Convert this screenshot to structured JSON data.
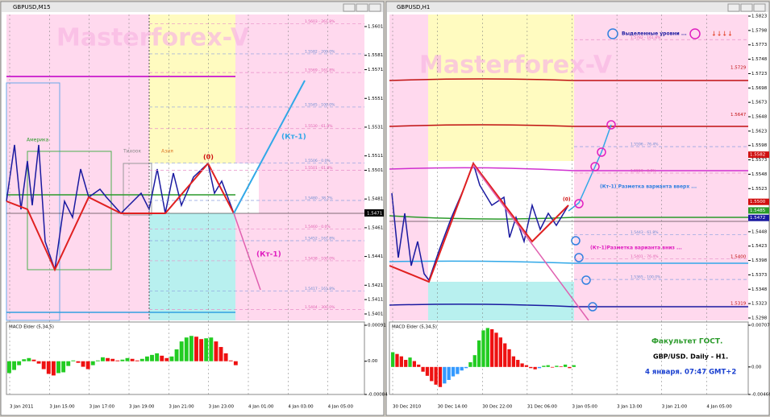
{
  "left": {
    "title": "GBPUSD,M15",
    "watermark": "Masterforex-V",
    "price_axis": [
      "1.5601",
      "1.5581",
      "1.5571",
      "1.5551",
      "1.5531",
      "1.5511",
      "1.5501",
      "1.5481",
      "1.5461",
      "1.5441",
      "1.5421",
      "1.5411",
      "1.5401"
    ],
    "current_price": "1.5471",
    "labels": {
      "america": "Америка",
      "pacific": "Тихоок",
      "asia": "Азия",
      "zero": "(0)",
      "kt_up": "(Кт-1)",
      "kt_down": "(Кт-1)"
    },
    "fib_labels": [
      "1.5603 - 261.8%",
      "1.5582 - 200.0%",
      "1.5569 - 161.8%",
      "1.5545 - 100.0%",
      "1.5530 - 61.8%",
      "1.5506 - 0.0%",
      "1.5501 - 61.8%",
      "1.5480 - 38.2%",
      "1.5460 - 0.0%",
      "1.5452 - 161.8%",
      "1.5438 - 100.0%",
      "1.5417 - 161.8%",
      "1.5404 - 300.0%"
    ],
    "time_axis": [
      "3 Jan 2011",
      "3 Jan 15:00",
      "3 Jan 17:00",
      "3 Jan 19:00",
      "3 Jan 21:00",
      "3 Jan 23:00",
      "4 Jan 01:00",
      "4 Jan 03:00",
      "4 Jan 05:00"
    ],
    "macd": {
      "title": "MACD Elder (5,34,5)",
      "ylim": [
        -0.00084,
        0.00091
      ],
      "yticks": [
        {
          "value": 0.00091,
          "label": "0.00091"
        },
        {
          "value": 0,
          "label": "0.00"
        },
        {
          "value": -0.00084,
          "label": "-0.00084"
        }
      ],
      "values": [
        -0.0003,
        -0.00022,
        -0.0001,
        5e-05,
        8e-05,
        4e-05,
        -6e-05,
        -0.0002,
        -0.00032,
        -0.00036,
        -0.0003,
        -0.00028,
        -0.00012,
        2e-05,
        -4e-05,
        -0.00014,
        -0.0002,
        -0.0001,
        2e-05,
        0.0001,
        8e-05,
        6e-05,
        2e-05,
        4e-05,
        8e-05,
        6e-05,
        2e-05,
        6e-05,
        0.00012,
        0.00016,
        0.0002,
        0.00014,
        8e-05,
        0.00012,
        0.0003,
        0.0005,
        0.0006,
        0.00064,
        0.00062,
        0.00056,
        0.00058,
        0.0006,
        0.0005,
        0.00036,
        0.0002,
        2e-05,
        -0.0001
      ]
    }
  },
  "right": {
    "title": "GBPUSD,H1",
    "watermark": "Masterforex-V",
    "price_axis": [
      "1.5823",
      "1.5798",
      "1.5773",
      "1.5748",
      "1.5723",
      "1.5698",
      "1.5673",
      "1.5648",
      "1.5623",
      "1.5598",
      "1.5573",
      "1.5548",
      "1.5523",
      "1.5498",
      "1.5473",
      "1.5448",
      "1.5423",
      "1.5398",
      "1.5373",
      "1.5348",
      "1.5323",
      "1.5298"
    ],
    "price_boxes": [
      "1.5582",
      "1.5500",
      "1.5485",
      "1.5472"
    ],
    "level_labels": [
      "1.5729",
      "1.5647",
      "1.5400",
      "1.5319"
    ],
    "legend": "Выделенные уровни ...",
    "labels": {
      "zero": "(0)",
      "kt_up": "(Кт-1) Разметка варианта вверх ...",
      "kt_down": "(Кт-1)Разметка варианта вниз ..."
    },
    "fib_labels": [
      "1.5782 - 161.8%",
      "1.5596 - 76.4%",
      "1.5550 - 0.0%",
      "1.5443 - 61.8%",
      "1.5401 - 76.4%",
      "1.5365 - 100.0%"
    ],
    "info": [
      "Факультет ГОСТ.",
      "GBP/USD. Daily - H1.",
      "4 января. 07:47 GMT+2"
    ],
    "time_axis": [
      "30 Dec 2010",
      "30 Dec 14:00",
      "30 Dec 22:00",
      "31 Dec 06:00",
      "3 Jan 05:00",
      "3 Jan 13:00",
      "3 Jan 21:00",
      "4 Jan 05:00"
    ],
    "macd": {
      "title": "MACD Elder (5,34,5)",
      "ylim": [
        -0.00466,
        0.00707
      ],
      "yticks": [
        {
          "value": 0.00707,
          "label": "0.00707"
        },
        {
          "value": 0,
          "label": "0.00"
        },
        {
          "value": -0.00466,
          "label": "-0.00466"
        }
      ],
      "values": [
        0.0025,
        0.0022,
        0.0018,
        0.0012,
        0.0016,
        0.001,
        0.0004,
        -0.0008,
        -0.0015,
        -0.0024,
        -0.003,
        -0.0034,
        -0.0028,
        -0.0022,
        -0.0016,
        -0.0012,
        -0.0006,
        -0.0002,
        0.0008,
        0.002,
        0.0045,
        0.0062,
        0.0066,
        0.0064,
        0.0058,
        0.005,
        0.004,
        0.003,
        0.0018,
        0.0012,
        0.0006,
        0.0003,
        -0.0002,
        -0.0004,
        -0.0002,
        0.0002,
        0.0003,
        -0.0001,
        0.0002,
        0.0001,
        0.0004,
        -0.0002,
        0.0003
      ]
    }
  }
}
